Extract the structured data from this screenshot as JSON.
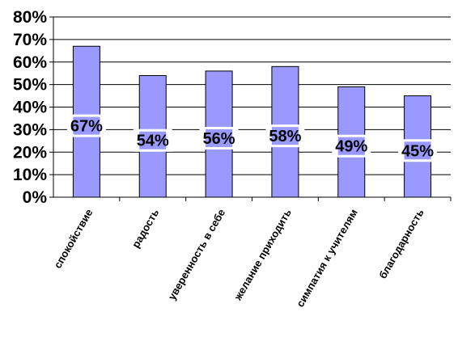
{
  "chart_data": {
    "type": "bar",
    "categories": [
      "спокойствие",
      "радость",
      "уверенность в себе",
      "желание приходить",
      "симпатия к учителям",
      "благодарность"
    ],
    "values": [
      67,
      54,
      56,
      58,
      49,
      45
    ],
    "data_labels": [
      "67%",
      "54%",
      "56%",
      "58%",
      "49%",
      "45%"
    ],
    "yticks": [
      "0%",
      "10%",
      "20%",
      "30%",
      "40%",
      "50%",
      "60%",
      "70%",
      "80%"
    ],
    "ylim": [
      0,
      80
    ],
    "grid": true,
    "legend": "none",
    "colors": {
      "bar": "#9999ff",
      "bar_stroke": "#000000",
      "grid": "#000000",
      "label_bg": "#ffffff"
    }
  }
}
